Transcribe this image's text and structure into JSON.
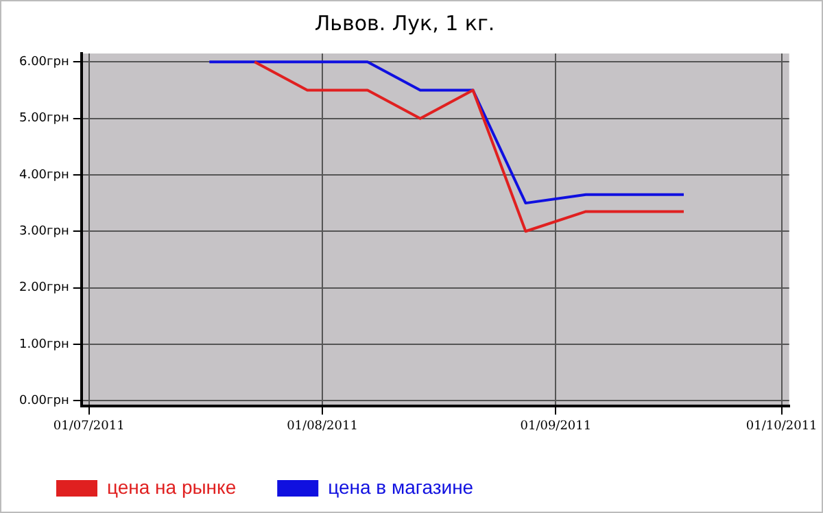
{
  "chart_data": {
    "type": "line",
    "title": "Львов. Лук, 1 кг.",
    "x": [
      "2011-07-17",
      "2011-07-23",
      "2011-07-30",
      "2011-08-07",
      "2011-08-14",
      "2011-08-21",
      "2011-08-28",
      "2011-09-05",
      "2011-09-18"
    ],
    "series": [
      {
        "name": "цена на рынке",
        "color": "#e02020",
        "values": [
          null,
          6,
          5.5,
          5.5,
          5.0,
          5.5,
          3.0,
          3.35,
          3.35
        ]
      },
      {
        "name": "цена в магазине",
        "color": "#1010e0",
        "values": [
          6,
          6,
          6,
          6,
          5.5,
          5.5,
          3.5,
          3.65,
          3.65
        ]
      }
    ],
    "xlim": [
      "2011-06-30",
      "2011-10-02"
    ],
    "xticks": [
      {
        "value": "2011-07-01",
        "label": "01/07/2011"
      },
      {
        "value": "2011-08-01",
        "label": "01/08/2011"
      },
      {
        "value": "2011-09-01",
        "label": "01/09/2011"
      },
      {
        "value": "2011-10-01",
        "label": "01/10/2011"
      }
    ],
    "ylim": [
      -0.1,
      6.15
    ],
    "yticks": [
      {
        "value": 0,
        "label": "0.00грн"
      },
      {
        "value": 1,
        "label": "1.00грн"
      },
      {
        "value": 2,
        "label": "2.00грн"
      },
      {
        "value": 3,
        "label": "3.00грн"
      },
      {
        "value": 4,
        "label": "4.00грн"
      },
      {
        "value": 5,
        "label": "5.00грн"
      },
      {
        "value": 6,
        "label": "6.00грн"
      }
    ],
    "grid": true,
    "legend": "bottom left",
    "marker": "none",
    "line_style": "solid"
  }
}
